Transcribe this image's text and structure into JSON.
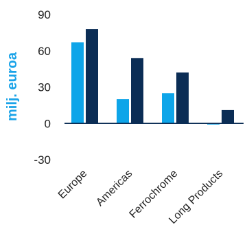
{
  "chart_data": {
    "type": "bar",
    "categories": [
      "Europe",
      "Americas",
      "Ferrochrome",
      "Long Products"
    ],
    "series": [
      {
        "values": [
          67,
          20,
          25,
          -1
        ],
        "color": "#0ea5e9"
      },
      {
        "values": [
          78,
          54,
          42,
          11
        ],
        "color": "#0b2d55"
      }
    ],
    "ylabel": "milj. euroa",
    "ylabel_color": "#1aa3e8",
    "ylim": [
      -30,
      90
    ],
    "yticks": [
      90,
      60,
      30,
      0,
      -30
    ],
    "grid": false
  }
}
